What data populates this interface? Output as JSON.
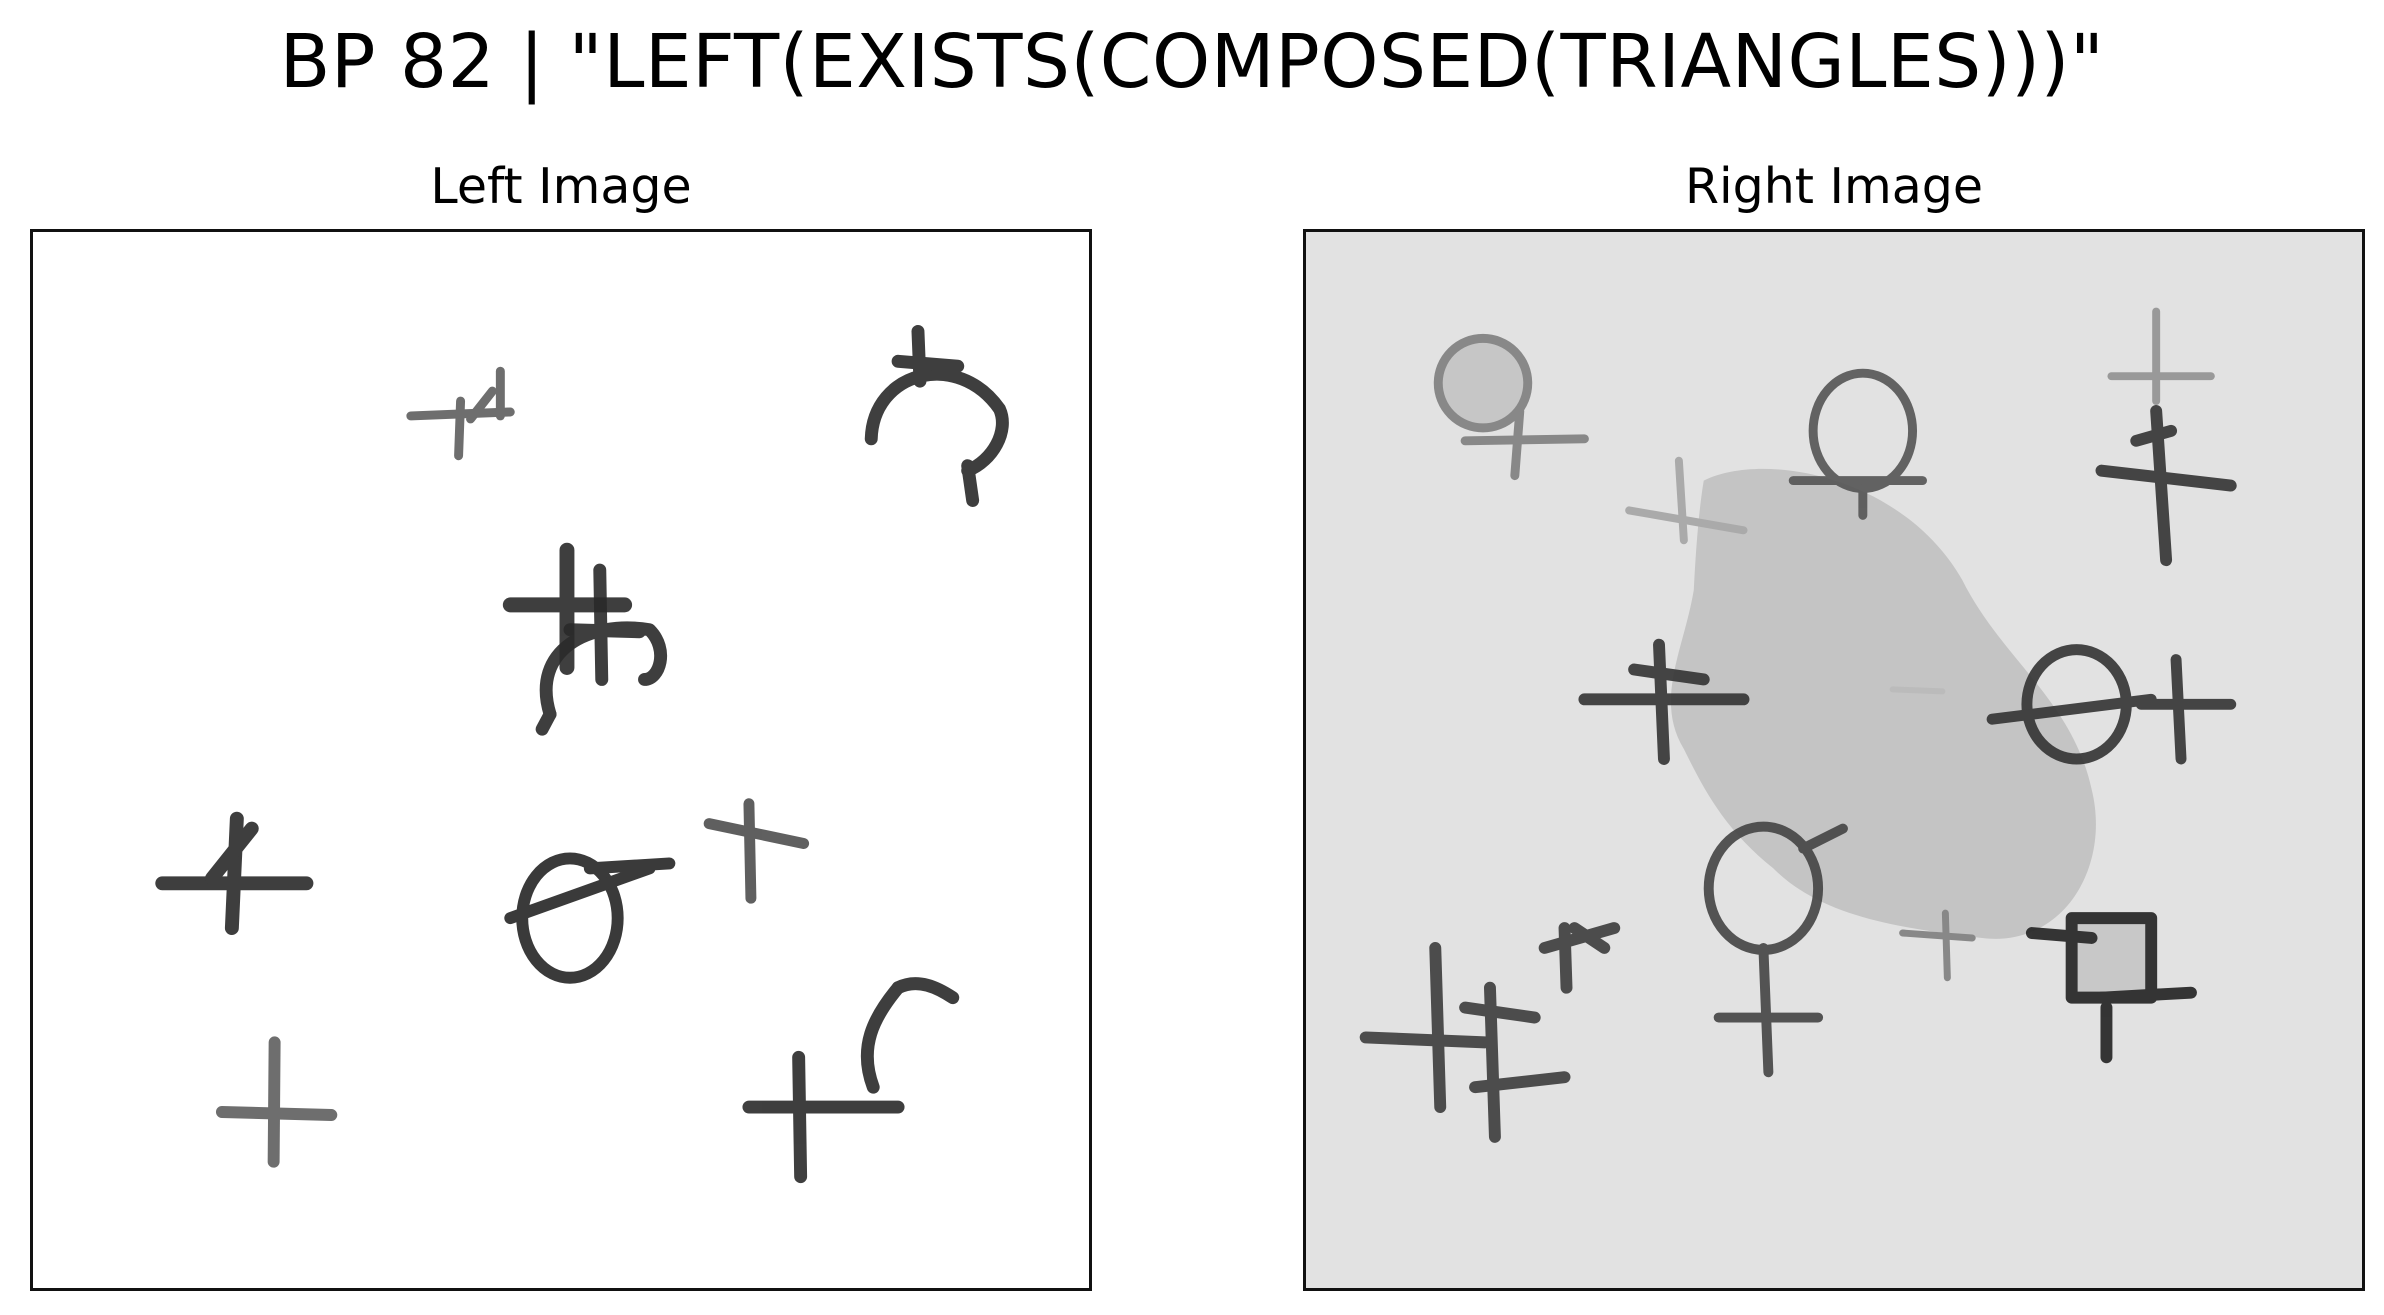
{
  "figure": {
    "title": "BP 82 | \"LEFT(EXISTS(COMPOSED(TRIANGLES)))\""
  },
  "panels": {
    "left": {
      "title": "Left Image",
      "background": "#ffffff"
    },
    "right": {
      "title": "Right Image",
      "background": "#e2e2e2",
      "blob_color": "#c4c4c4"
    }
  },
  "colors": {
    "ink": "#2a2a2a",
    "border": "#111111"
  }
}
